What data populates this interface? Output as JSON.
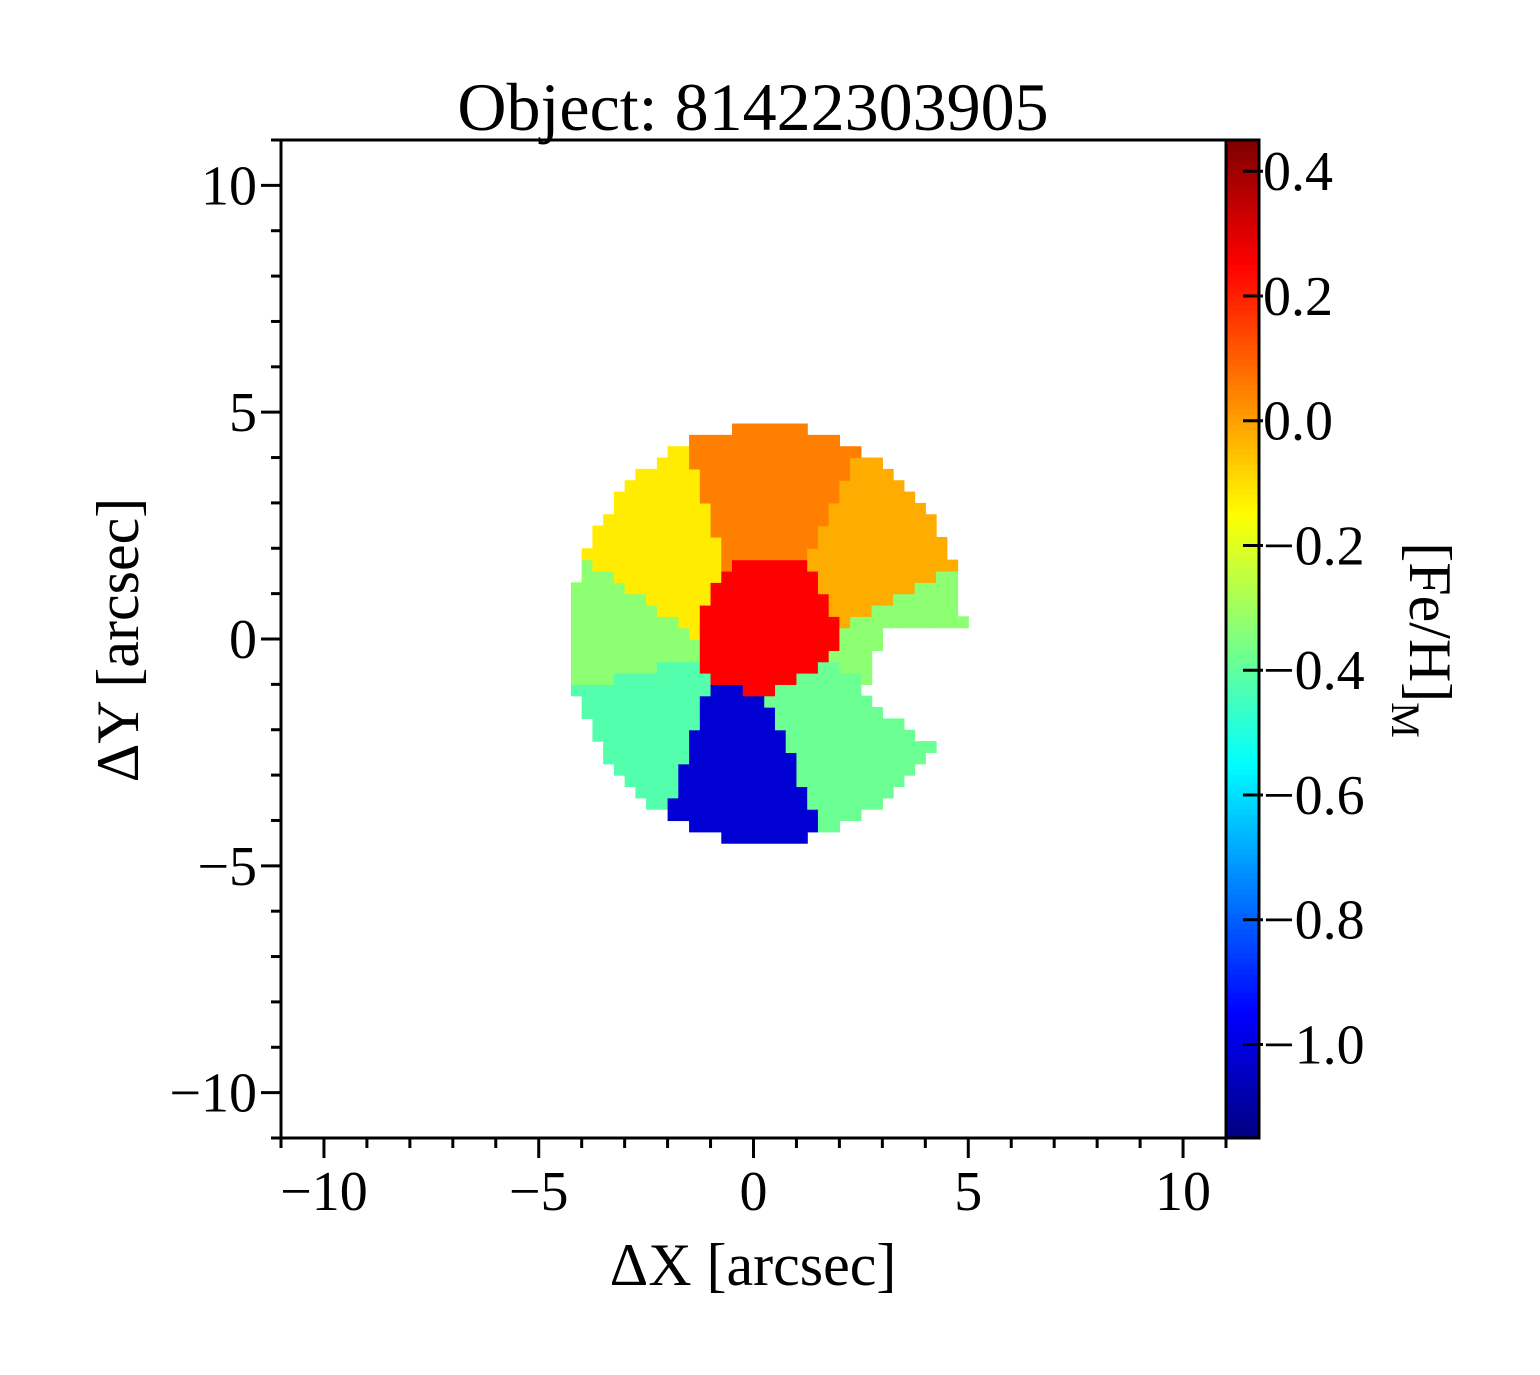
{
  "chart_data": {
    "type": "heatmap",
    "title": "Object: 81422303905",
    "xlabel": "ΔX [arcsec]",
    "ylabel": "ΔY [arcsec]",
    "colorbar_label": "[Fe/H]",
    "colorbar_label_subscript": "M",
    "colormap": "jet",
    "xlim": [
      -11,
      11
    ],
    "ylim": [
      -11,
      11
    ],
    "clim": [
      -1.15,
      0.45
    ],
    "x_ticks": [
      -10,
      -5,
      0,
      5,
      10
    ],
    "x_tick_labels": [
      "−10",
      "−5",
      "0",
      "5",
      "10"
    ],
    "y_ticks": [
      -10,
      -5,
      0,
      5,
      10
    ],
    "y_tick_labels": [
      "−10",
      "−5",
      "0",
      "5",
      "10"
    ],
    "colorbar_ticks": [
      0.4,
      0.2,
      0.0,
      -0.2,
      -0.4,
      -0.6,
      -0.8,
      -1.0
    ],
    "colorbar_tick_labels": [
      "0.4",
      "0.2",
      "0.0",
      "−0.2",
      "−0.4",
      "−0.6",
      "−0.8",
      "−1.0"
    ],
    "grid": false,
    "map_extent": {
      "x_center": 0.3,
      "y_center": 0.1,
      "radius": 4.6,
      "cut_start_deg": -32,
      "cut_end_deg": 2
    },
    "bins": [
      {
        "region": "outer-north",
        "x": 0.5,
        "y": 3.2,
        "feh": 0.05
      },
      {
        "region": "outer-north-east",
        "x": 2.8,
        "y": 2.0,
        "feh": -0.02
      },
      {
        "region": "outer-north-west",
        "x": -2.5,
        "y": 2.2,
        "feh": -0.12
      },
      {
        "region": "west",
        "x": -3.8,
        "y": 0.3,
        "feh": -0.33
      },
      {
        "region": "south-west",
        "x": -3.2,
        "y": -2.2,
        "feh": -0.42
      },
      {
        "region": "south",
        "x": 0.0,
        "y": -3.3,
        "feh": -1.02
      },
      {
        "region": "south-east",
        "x": 2.0,
        "y": -2.4,
        "feh": -0.38
      },
      {
        "region": "east",
        "x": 3.8,
        "y": -0.2,
        "feh": -0.33
      },
      {
        "region": "core",
        "x": 0.5,
        "y": 0.5,
        "feh": 0.25
      }
    ]
  }
}
